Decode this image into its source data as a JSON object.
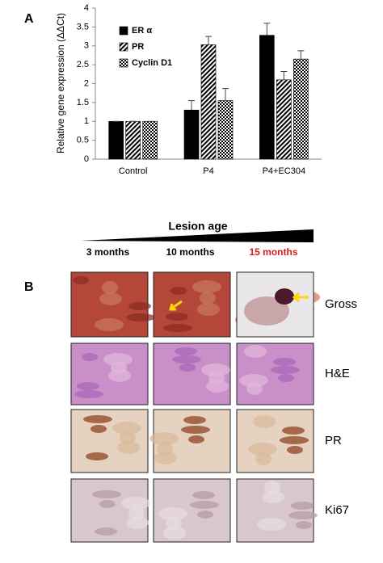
{
  "panel_a_label": "A",
  "chart_data": {
    "type": "bar",
    "y_label": "Relative gene expression (ΔΔCt)",
    "categories": [
      "Control",
      "P4",
      "P4+EC304"
    ],
    "series": [
      {
        "name": "ER α",
        "color": "#000000",
        "pattern": "solid",
        "values": [
          1,
          1.3,
          3.28
        ],
        "errors": [
          0,
          0.25,
          0.32
        ]
      },
      {
        "name": "PR",
        "color": "#000000",
        "pattern": "hatch",
        "values": [
          1,
          3.03,
          2.1
        ],
        "errors": [
          0,
          0.22,
          0.22
        ]
      },
      {
        "name": "Cyclin D1",
        "color": "#000000",
        "pattern": "crosshatch",
        "values": [
          1,
          1.55,
          2.65
        ],
        "errors": [
          0,
          0.32,
          0.22
        ]
      }
    ],
    "ylim": [
      0,
      4
    ],
    "yticks": [
      0,
      0.5,
      1,
      1.5,
      2,
      2.5,
      3,
      3.5,
      4
    ],
    "grid": false,
    "legend": "top-left"
  },
  "panel_b": {
    "label": "B",
    "title": "Lesion age",
    "columns": [
      "3 months",
      "10 months",
      "15 months"
    ],
    "rows": [
      "Gross",
      "H&E",
      "PR",
      "Ki67"
    ]
  }
}
